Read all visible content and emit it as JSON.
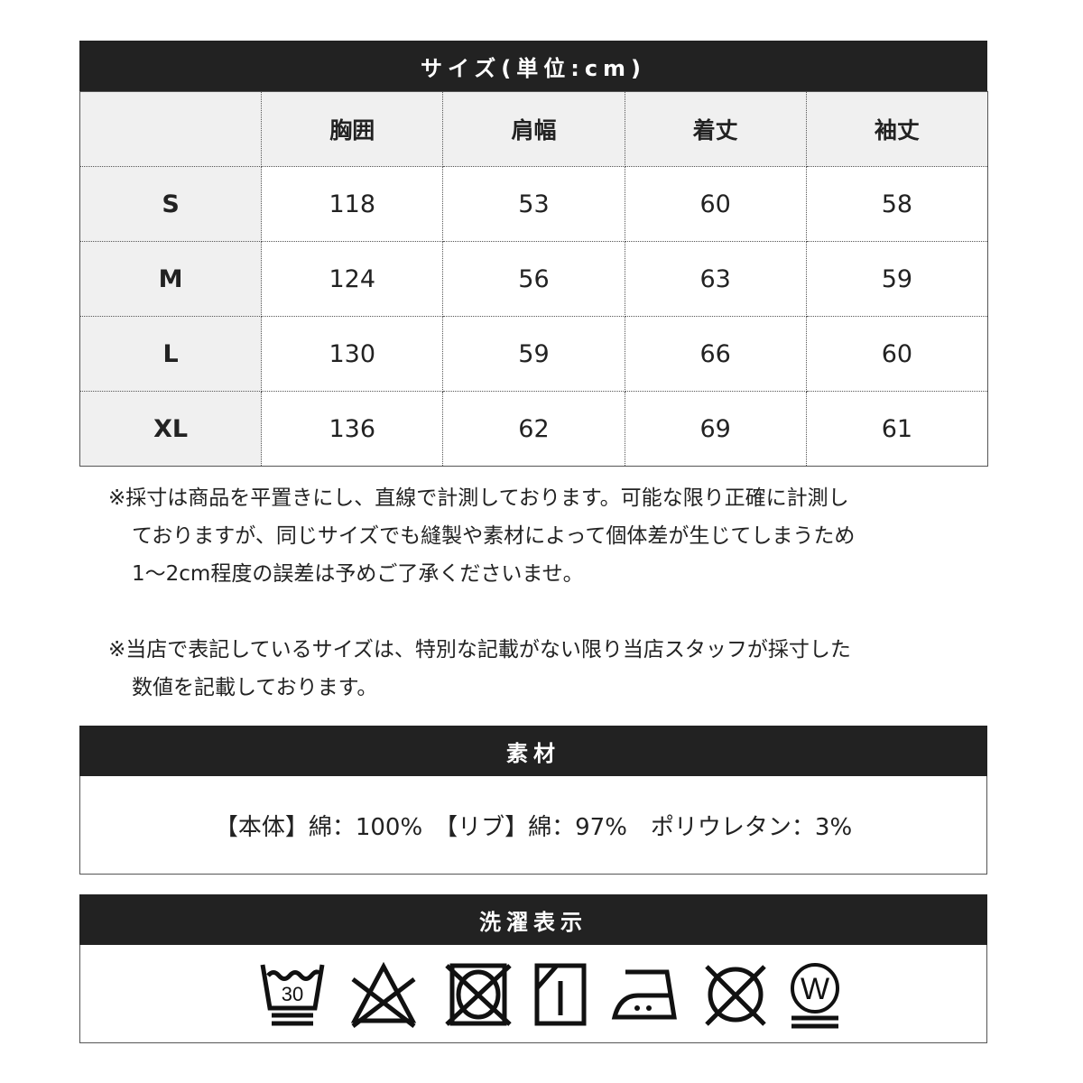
{
  "size_table": {
    "title": "サイズ(単位:cm)",
    "columns": [
      "",
      "胸囲",
      "肩幅",
      "着丈",
      "袖丈"
    ],
    "rows": [
      {
        "size": "S",
        "values": [
          "118",
          "53",
          "60",
          "58"
        ]
      },
      {
        "size": "M",
        "values": [
          "124",
          "56",
          "63",
          "59"
        ]
      },
      {
        "size": "L",
        "values": [
          "130",
          "59",
          "66",
          "60"
        ]
      },
      {
        "size": "XL",
        "values": [
          "136",
          "62",
          "69",
          "61"
        ]
      }
    ]
  },
  "notes": [
    [
      "※採寸は商品を平置きにし、直線で計測しております。可能な限り正確に計測し",
      "ておりますが、同じサイズでも縫製や素材によって個体差が生じてしまうため",
      "1～2cm程度の誤差は予めご了承くださいませ。"
    ],
    [
      "※当店で表記しているサイズは、特別な記載がない限り当店スタッフが採寸した",
      "数値を記載しております。"
    ]
  ],
  "material": {
    "title": "素材",
    "text": "【本体】綿：100%　【リブ】綿：97%　ポリウレタン：3%"
  },
  "laundry": {
    "title": "洗濯表示",
    "icons": [
      {
        "name": "wash-30-gentle-icon",
        "label": "30"
      },
      {
        "name": "no-bleach-icon"
      },
      {
        "name": "no-tumble-dry-icon"
      },
      {
        "name": "line-dry-shade-icon"
      },
      {
        "name": "iron-medium-icon"
      },
      {
        "name": "no-dry-clean-icon"
      },
      {
        "name": "wet-clean-very-gentle-icon",
        "label": "W"
      }
    ]
  }
}
